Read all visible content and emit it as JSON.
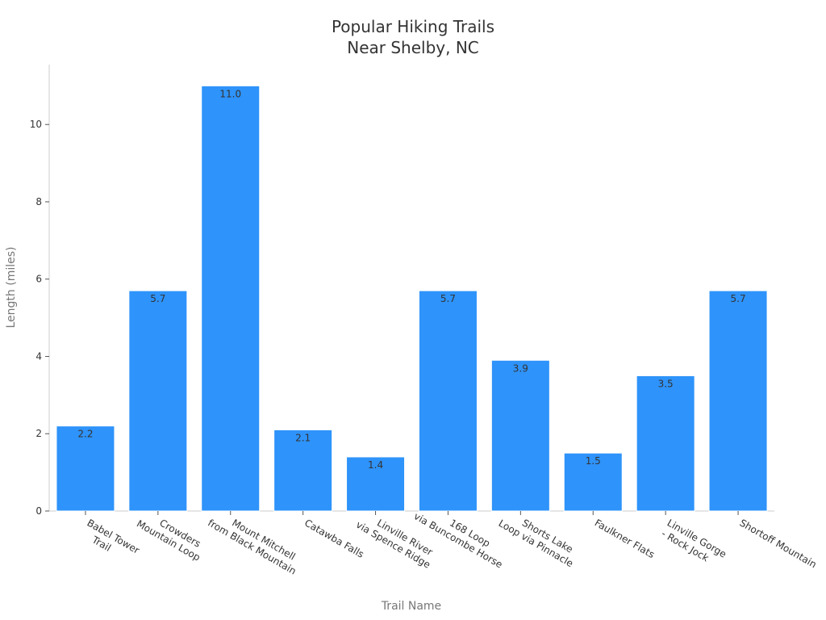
{
  "chart_data": {
    "type": "bar",
    "title_lines": [
      "Popular Hiking Trails",
      "Near Shelby, NC"
    ],
    "xlabel": "Trail Name",
    "ylabel": "Length (miles)",
    "categories": [
      [
        "Babel Tower",
        "Trail"
      ],
      [
        "Crowders",
        "Mountain Loop"
      ],
      [
        "Mount Mitchell",
        "from Black Mountain"
      ],
      [
        "Catawba Falls"
      ],
      [
        "Linville River",
        "via Spence Ridge"
      ],
      [
        "168 Loop",
        "via Buncombe Horse"
      ],
      [
        "Shorts Lake",
        "Loop via Pinnacle"
      ],
      [
        "Faulkner Flats"
      ],
      [
        "Linville Gorge",
        "- Rock Jock"
      ],
      [
        "Shortoff Mountain"
      ]
    ],
    "values": [
      2.2,
      5.7,
      11.0,
      2.1,
      1.4,
      5.7,
      3.9,
      1.5,
      3.5,
      5.7
    ],
    "value_labels": [
      "2.2",
      "5.7",
      "11.0",
      "2.1",
      "1.4",
      "5.7",
      "3.9",
      "1.5",
      "3.5",
      "5.7"
    ],
    "yticks": [
      0,
      2,
      4,
      6,
      8,
      10
    ],
    "ylim": [
      0,
      11.55
    ],
    "bar_color": "#2e93fa",
    "grid": false,
    "legend": "none"
  }
}
